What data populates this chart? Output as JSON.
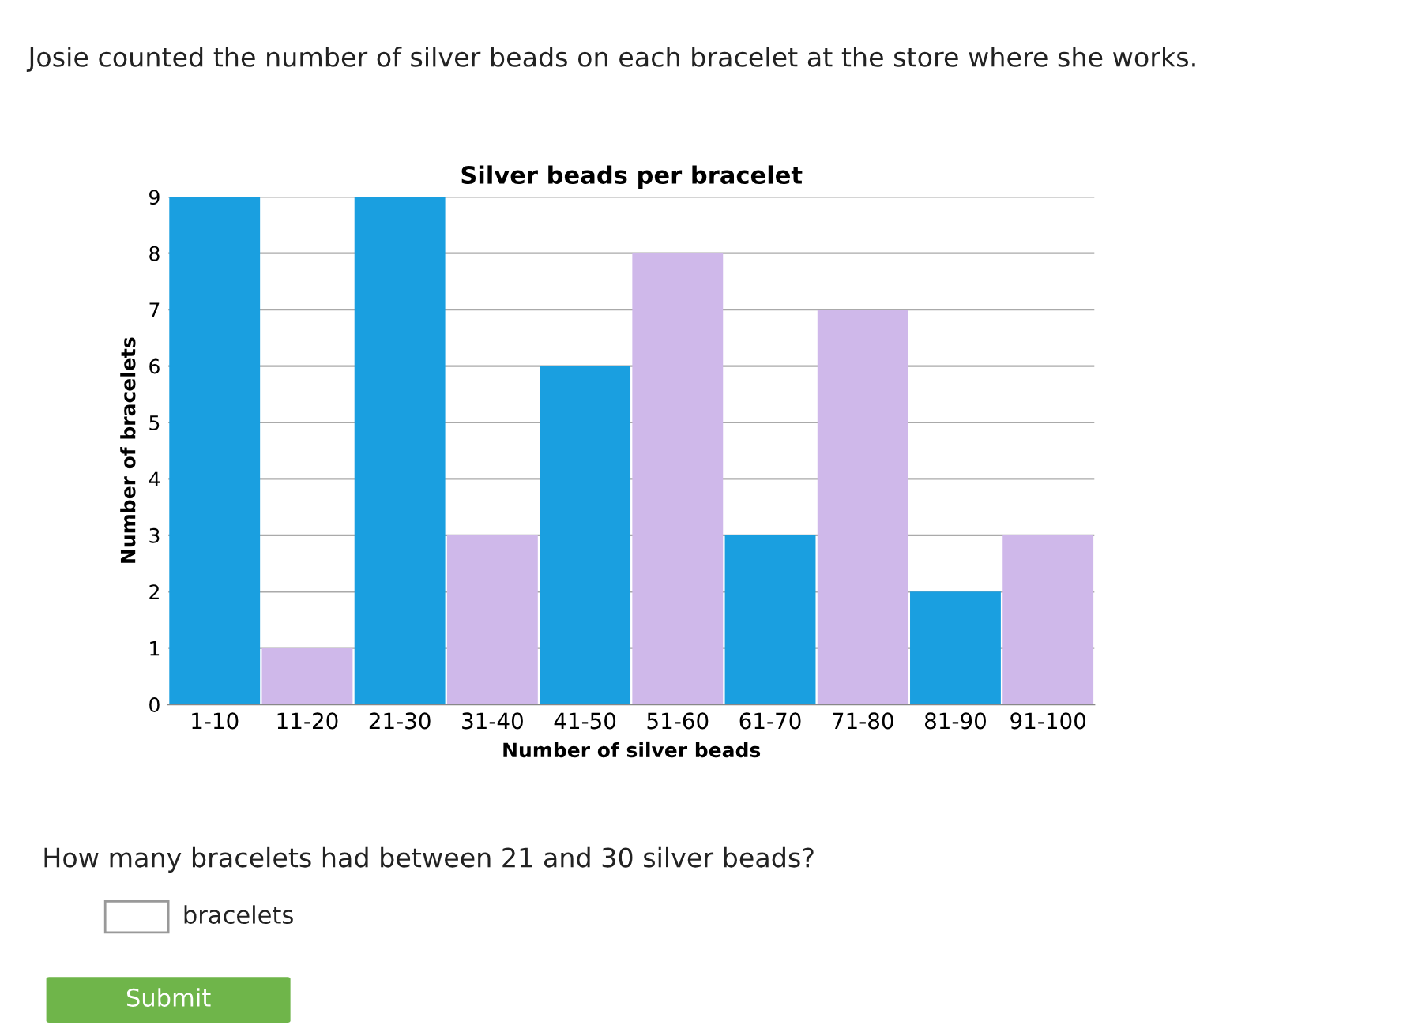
{
  "chart_data": {
    "type": "bar",
    "title": "Silver beads per bracelet",
    "xlabel": "Number of silver beads",
    "ylabel": "Number of bracelets",
    "categories": [
      "1-10",
      "11-20",
      "21-30",
      "31-40",
      "41-50",
      "51-60",
      "61-70",
      "71-80",
      "81-90",
      "91-100"
    ],
    "values": [
      9,
      1,
      9,
      3,
      6,
      8,
      3,
      7,
      2,
      3
    ],
    "colors": [
      "#1a9fe0",
      "#cfb8ea",
      "#1a9fe0",
      "#cfb8ea",
      "#1a9fe0",
      "#cfb8ea",
      "#1a9fe0",
      "#cfb8ea",
      "#1a9fe0",
      "#cfb8ea"
    ],
    "ylim": [
      0,
      9
    ],
    "yticks": [
      0,
      1,
      2,
      3,
      4,
      5,
      6,
      7,
      8,
      9
    ],
    "grid": "y",
    "annotations": [
      "Josie counted the number of silver beads on each bracelet at the store where she works.",
      "How many bracelets had between 21 and 30 silver beads?",
      "bracelets",
      "Submit"
    ]
  }
}
